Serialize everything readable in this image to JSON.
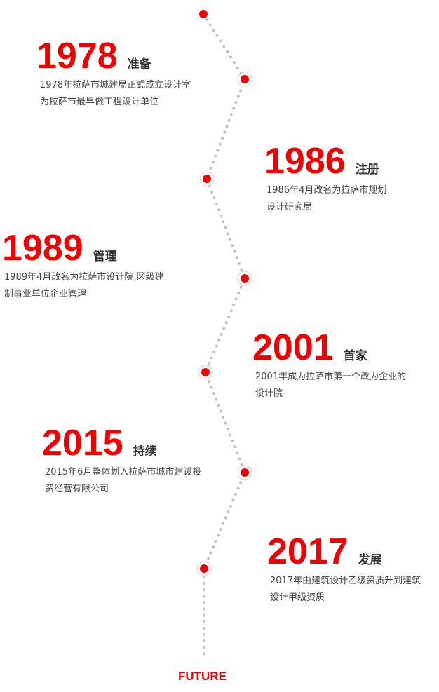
{
  "colors": {
    "accent": "#f00000",
    "line": "#c0c0c0",
    "text": "#444444"
  },
  "timeline": [
    {
      "year": "1978",
      "title": "准备",
      "lines": [
        "1978年拉萨市城建局正式成立设计室",
        "为拉萨市最早做工程设计单位"
      ]
    },
    {
      "year": "1986",
      "title": "注册",
      "lines": [
        "1986年4月改名为拉萨市规划",
        "设计研究局"
      ]
    },
    {
      "year": "1989",
      "title": "管理",
      "lines": [
        "1989年4月改名为拉萨市设计院,区级建",
        "制事业单位企业管理"
      ]
    },
    {
      "year": "2001",
      "title": "首家",
      "lines": [
        "2001年成为拉萨市第一个改为企业的",
        "设计院"
      ]
    },
    {
      "year": "2015",
      "title": "持续",
      "lines": [
        "2015年6月整体划入拉萨市城市建设投",
        "资经营有限公司"
      ]
    },
    {
      "year": "2017",
      "title": "发展",
      "lines": [
        "2017年由建筑设计乙级资质升到建筑",
        "设计甲级资质"
      ]
    }
  ],
  "footer": "FUTURE"
}
